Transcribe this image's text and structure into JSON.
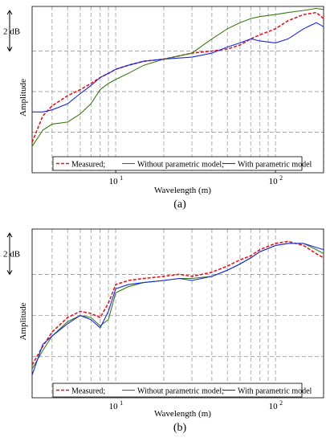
{
  "chart_data": [
    {
      "type": "line",
      "panel_label": "(a)",
      "xlabel": "Wavelength (m)",
      "ylabel": "Amplitude",
      "xscale": "log",
      "xlim": [
        3,
        200
      ],
      "x_ticks": [
        {
          "value": 10,
          "label": "10",
          "sup": "1"
        },
        {
          "value": 100,
          "label": "10",
          "sup": "2"
        }
      ],
      "scale_bar_label": "2 dB",
      "scale_bar_db": 2,
      "ylim": [
        0,
        8.2
      ],
      "h_gridlines": [
        2,
        4,
        6
      ],
      "v_gridlines": [
        3,
        4,
        5,
        6,
        7,
        8,
        9,
        10,
        20,
        30,
        40,
        50,
        60,
        70,
        80,
        90,
        100,
        200
      ],
      "legend": {
        "position": "bottom-center"
      },
      "x": [
        3,
        3.5,
        4,
        5,
        6,
        7,
        8,
        9,
        10,
        12,
        15,
        20,
        30,
        40,
        50,
        60,
        70,
        80,
        100,
        120,
        150,
        180,
        200
      ],
      "series": [
        {
          "name": "Measured;",
          "color": "#e8141c",
          "dash": "dashed",
          "values": [
            1.5,
            2.8,
            3.3,
            3.8,
            4.1,
            4.4,
            4.7,
            4.9,
            5.1,
            5.3,
            5.5,
            5.6,
            5.9,
            6.0,
            6.1,
            6.3,
            6.6,
            6.8,
            7.1,
            7.5,
            7.8,
            7.9,
            7.6
          ]
        },
        {
          "name": "Without parametric model;",
          "color": "#3a7a14",
          "dash": "solid",
          "values": [
            1.3,
            2.1,
            2.4,
            2.5,
            2.9,
            3.4,
            4.1,
            4.4,
            4.6,
            4.9,
            5.3,
            5.6,
            5.9,
            6.6,
            7.1,
            7.4,
            7.6,
            7.7,
            7.8,
            7.9,
            8.0,
            8.1,
            8.05
          ]
        },
        {
          "name": "With parametric model",
          "color": "#1528e8",
          "dash": "solid",
          "values": [
            3.0,
            3.0,
            3.1,
            3.4,
            3.9,
            4.3,
            4.7,
            4.9,
            5.1,
            5.3,
            5.5,
            5.6,
            5.7,
            5.9,
            6.2,
            6.4,
            6.6,
            6.5,
            6.4,
            6.6,
            7.1,
            7.4,
            7.2
          ]
        }
      ]
    },
    {
      "type": "line",
      "panel_label": "(b)",
      "xlabel": "Wavelength (m)",
      "ylabel": "Amplitude",
      "xscale": "log",
      "xlim": [
        3,
        200
      ],
      "x_ticks": [
        {
          "value": 10,
          "label": "10",
          "sup": "1"
        },
        {
          "value": 100,
          "label": "10",
          "sup": "2"
        }
      ],
      "scale_bar_label": "2 dB",
      "scale_bar_db": 2,
      "ylim": [
        0,
        8.2
      ],
      "h_gridlines": [
        2,
        4,
        6
      ],
      "v_gridlines": [
        3,
        4,
        5,
        6,
        7,
        8,
        9,
        10,
        20,
        30,
        40,
        50,
        60,
        70,
        80,
        90,
        100,
        200
      ],
      "legend": {
        "position": "bottom-center"
      },
      "x": [
        3,
        3.5,
        4,
        5,
        6,
        7,
        8,
        9,
        10,
        12,
        15,
        20,
        25,
        30,
        40,
        50,
        60,
        70,
        80,
        100,
        120,
        150,
        180,
        200
      ],
      "series": [
        {
          "name": "Measured;",
          "color": "#e8141c",
          "dash": "dashed",
          "values": [
            1.6,
            2.5,
            3.2,
            3.9,
            4.2,
            4.1,
            3.9,
            4.6,
            5.5,
            5.7,
            5.8,
            5.9,
            6.0,
            5.9,
            6.1,
            6.4,
            6.7,
            6.9,
            7.2,
            7.5,
            7.6,
            7.4,
            7.0,
            6.8
          ]
        },
        {
          "name": "Without parametric model;",
          "color": "#3a7a14",
          "dash": "solid",
          "values": [
            1.4,
            2.3,
            3.0,
            3.7,
            4.0,
            3.9,
            3.5,
            3.8,
            5.1,
            5.4,
            5.6,
            5.7,
            5.8,
            5.8,
            5.9,
            6.2,
            6.5,
            6.8,
            7.1,
            7.4,
            7.5,
            7.5,
            7.2,
            7.0
          ]
        },
        {
          "name": "With parametric model",
          "color": "#1528e8",
          "dash": "solid",
          "values": [
            1.1,
            2.6,
            3.0,
            3.6,
            4.0,
            3.8,
            3.4,
            4.2,
            5.3,
            5.5,
            5.6,
            5.7,
            5.8,
            5.7,
            5.9,
            6.2,
            6.5,
            6.8,
            7.1,
            7.4,
            7.5,
            7.5,
            7.3,
            7.2
          ]
        }
      ]
    }
  ]
}
